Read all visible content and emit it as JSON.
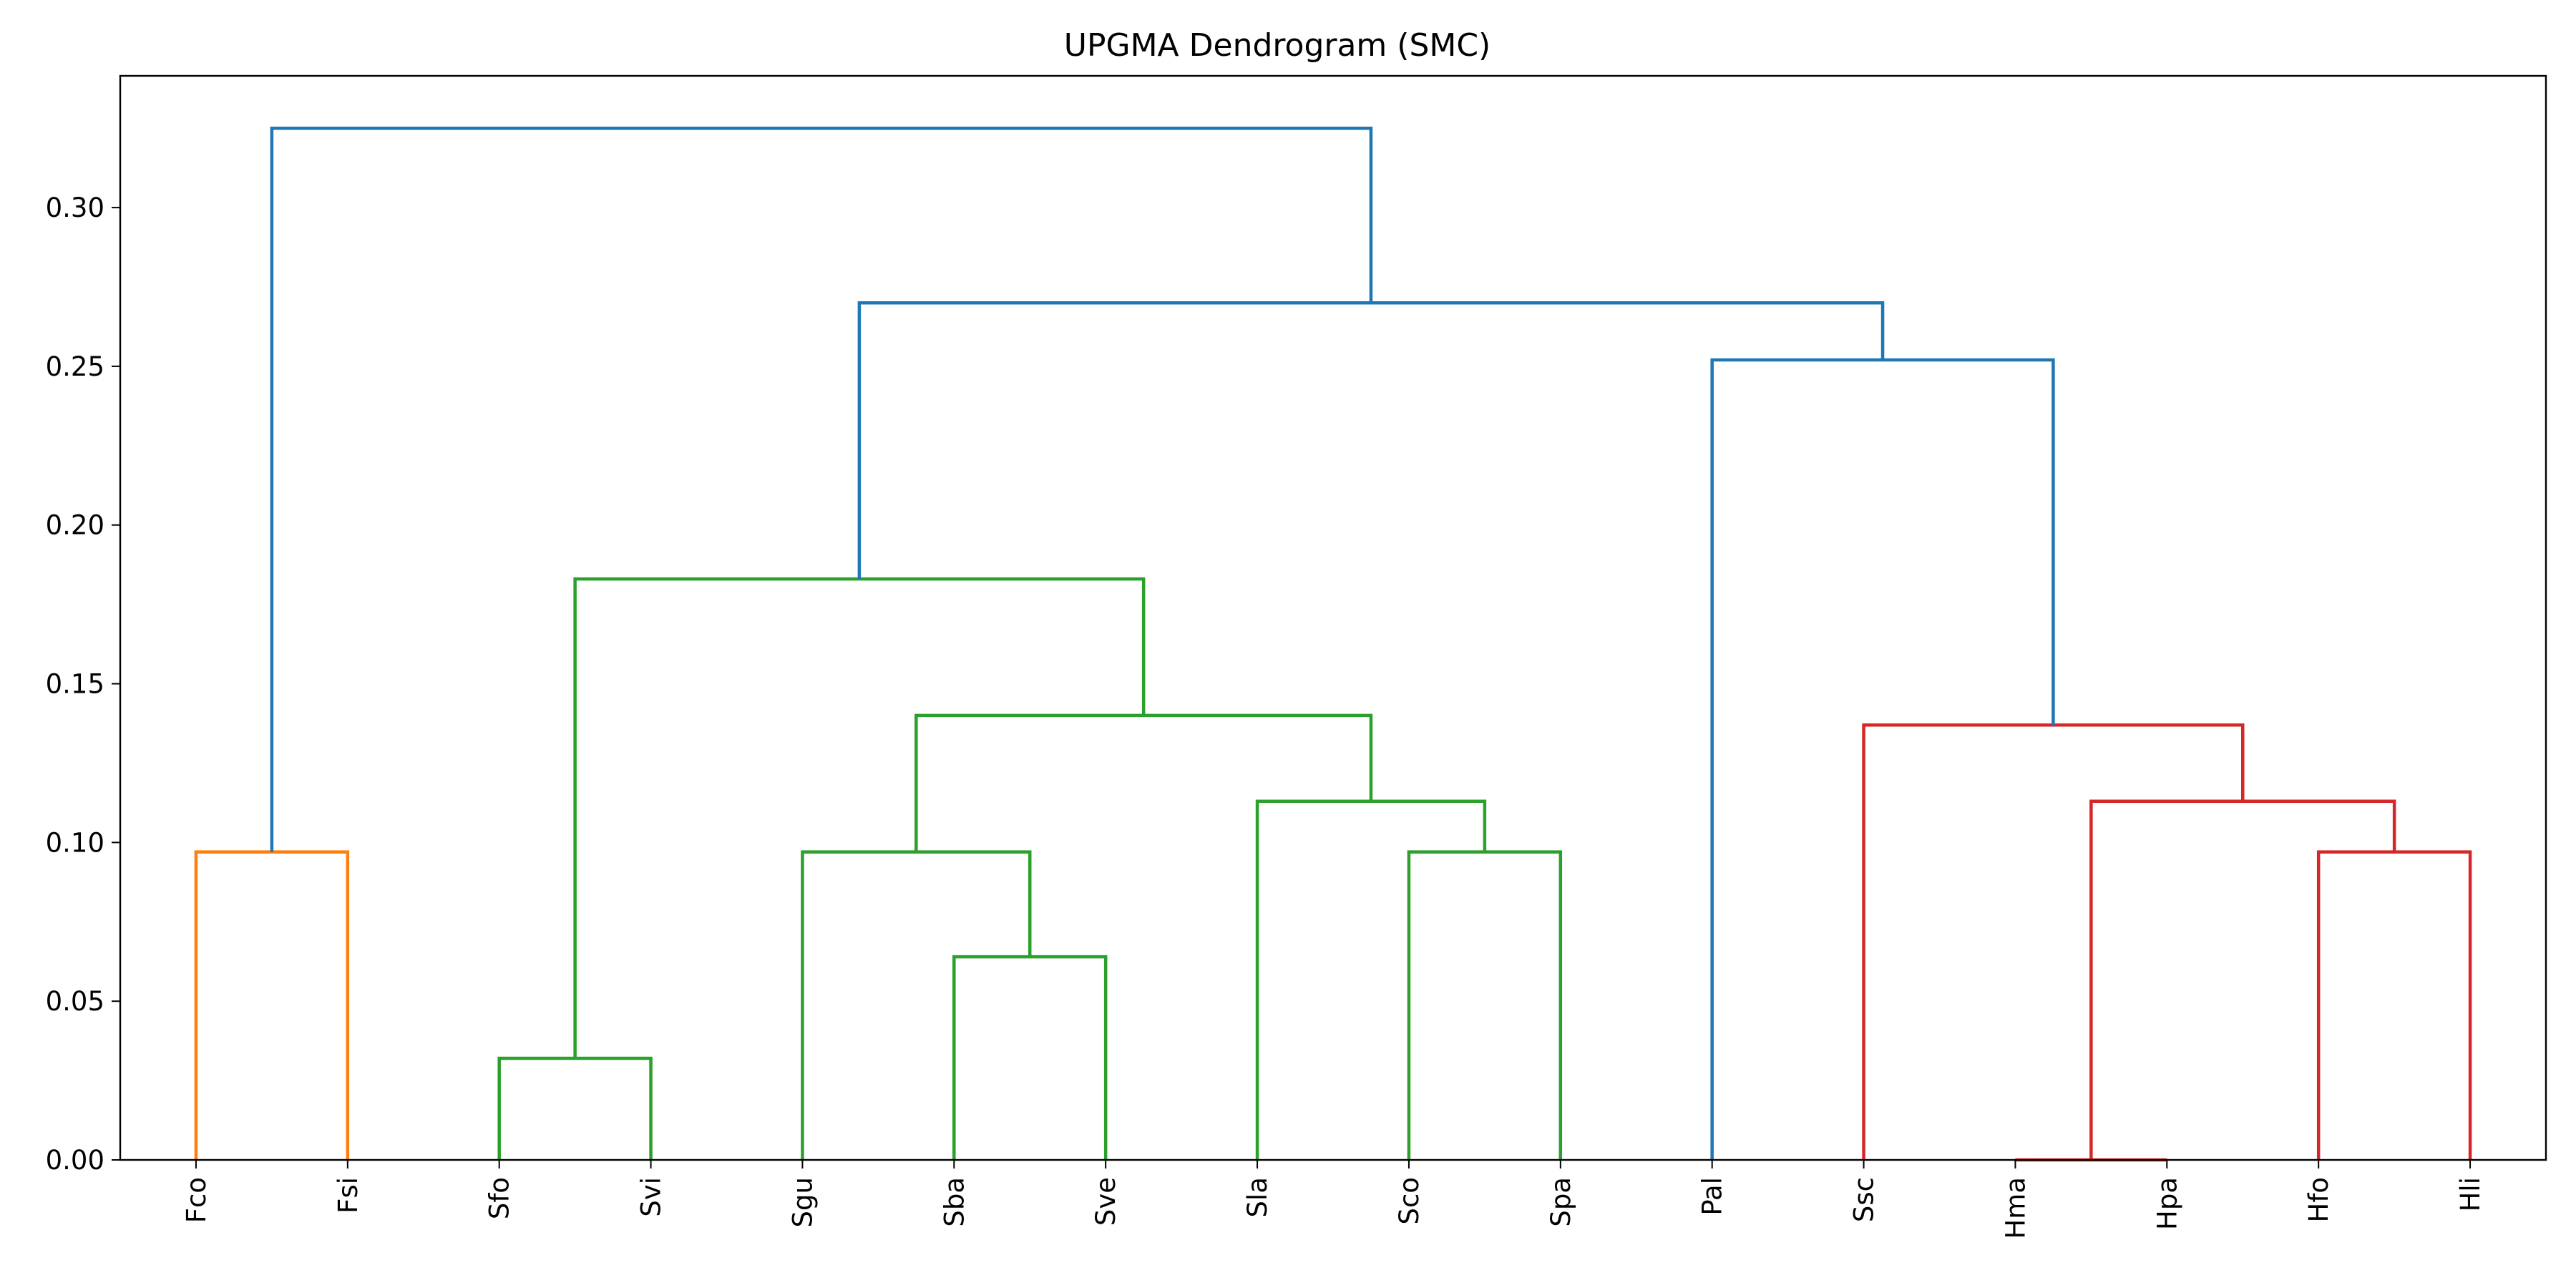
{
  "chart_data": {
    "type": "dendrogram",
    "title": "UPGMA Dendrogram (SMC)",
    "xlabel": "",
    "ylabel": "",
    "ylim": [
      0,
      0.3415
    ],
    "yticks": [
      0.0,
      0.05,
      0.1,
      0.15,
      0.2,
      0.25,
      0.3
    ],
    "ytick_labels": [
      "0.00",
      "0.05",
      "0.10",
      "0.15",
      "0.20",
      "0.25",
      "0.30"
    ],
    "grid": false,
    "leaves": [
      "Fco",
      "Fsi",
      "Sfo",
      "Svi",
      "Sgu",
      "Sba",
      "Sve",
      "Sla",
      "Sco",
      "Spa",
      "Pal",
      "Ssc",
      "Hma",
      "Hpa",
      "Hfo",
      "Hli"
    ],
    "colors": {
      "orange": "#ff7f0e",
      "green": "#2ca02c",
      "red": "#d62728",
      "blue": "#1f77b4"
    },
    "merges": [
      {
        "id": "m1",
        "left": "Fco",
        "right": "Fsi",
        "height": 0.097,
        "color": "orange"
      },
      {
        "id": "m2",
        "left": "Sfo",
        "right": "Svi",
        "height": 0.032,
        "color": "green"
      },
      {
        "id": "m3",
        "left": "Sba",
        "right": "Sve",
        "height": 0.064,
        "color": "green"
      },
      {
        "id": "m4",
        "left": "Sgu",
        "right": "m3",
        "height": 0.097,
        "color": "green"
      },
      {
        "id": "m5",
        "left": "Sco",
        "right": "Spa",
        "height": 0.097,
        "color": "green"
      },
      {
        "id": "m6",
        "left": "Sla",
        "right": "m5",
        "height": 0.113,
        "color": "green"
      },
      {
        "id": "m7",
        "left": "m4",
        "right": "m6",
        "height": 0.14,
        "color": "green"
      },
      {
        "id": "m8",
        "left": "m2",
        "right": "m7",
        "height": 0.183,
        "color": "green"
      },
      {
        "id": "m9",
        "left": "Hma",
        "right": "Hpa",
        "height": 0.0,
        "color": "red"
      },
      {
        "id": "m10",
        "left": "Hfo",
        "right": "Hli",
        "height": 0.097,
        "color": "red"
      },
      {
        "id": "m11",
        "left": "m9",
        "right": "m10",
        "height": 0.113,
        "color": "red"
      },
      {
        "id": "m12",
        "left": "Ssc",
        "right": "m11",
        "height": 0.137,
        "color": "red"
      },
      {
        "id": "m13",
        "left": "Pal",
        "right": "m12",
        "height": 0.252,
        "color": "blue"
      },
      {
        "id": "m14",
        "left": "m8",
        "right": "m13",
        "height": 0.27,
        "color": "blue"
      },
      {
        "id": "m15",
        "left": "m1",
        "right": "m14",
        "height": 0.325,
        "color": "blue"
      }
    ]
  }
}
